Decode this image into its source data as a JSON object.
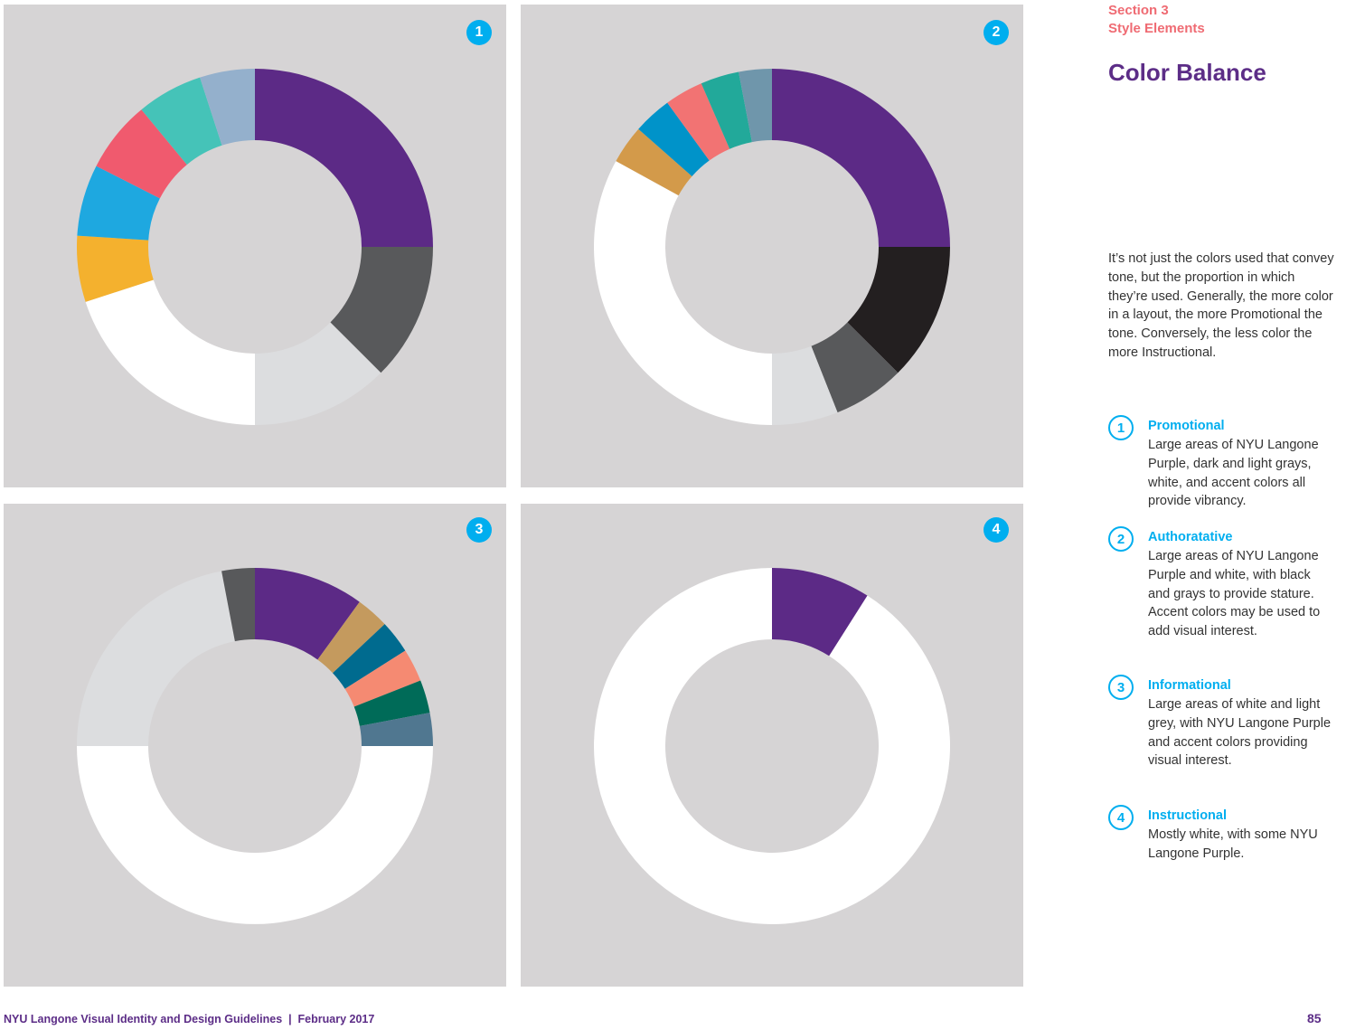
{
  "header": {
    "section": "Section 3",
    "subsection": "Style Elements",
    "title": "Color Balance"
  },
  "intro": "It’s not just the colors used that convey tone, but the proportion in which they’re used. Generally, the more color in a layout, the more Promotional the tone. Conversely, the less color the more Instructional.",
  "items": [
    {
      "number": "1",
      "title": "Promotional",
      "text": "Large areas of NYU Langone Purple, dark and light grays, white, and accent colors all provide vibrancy."
    },
    {
      "number": "2",
      "title": "Authoratative",
      "text": "Large areas of NYU Langone Purple and white, with black and grays to provide stature.  Accent colors may be used to add visual interest."
    },
    {
      "number": "3",
      "title": "Informational",
      "text": "Large areas of white and light grey, with NYU Langone Purple and accent colors providing visual interest."
    },
    {
      "number": "4",
      "title": "Instructional",
      "text": "Mostly white, with some NYU Langone Purple."
    }
  ],
  "footer": {
    "left": "NYU Langone Visual Identity and Design Guidelines  |  February 2017",
    "page": "85"
  },
  "colors": {
    "purple": "#5c2d87",
    "accent_blue": "#00aeef",
    "section_coral": "#ef6b73",
    "panel_gray": "#d6d4d5"
  },
  "chart_data": [
    {
      "type": "pie",
      "badge": "1",
      "series": [
        {
          "values": [
            25,
            12.5,
            12.5,
            20,
            6,
            6.5,
            6.5,
            6,
            5
          ]
        }
      ],
      "colors": [
        "#5c2a86",
        "#58595b",
        "#dcdddf",
        "#ffffff",
        "#f4b12e",
        "#1ea8e0",
        "#f05a6e",
        "#45c3b8",
        "#94b0cc"
      ]
    },
    {
      "type": "pie",
      "badge": "2",
      "series": [
        {
          "values": [
            25,
            12.5,
            6.5,
            6,
            33,
            3.5,
            3.5,
            3.5,
            3.5,
            3
          ]
        }
      ],
      "colors": [
        "#5c2a86",
        "#231f20",
        "#58595b",
        "#dcdddf",
        "#ffffff",
        "#d39a4a",
        "#0093c9",
        "#f27373",
        "#22a99a",
        "#6f96ab"
      ]
    },
    {
      "type": "pie",
      "badge": "3",
      "series": [
        {
          "values": [
            10,
            3,
            3,
            3,
            3,
            3,
            50,
            22,
            3
          ]
        }
      ],
      "colors": [
        "#5c2a86",
        "#c49a5e",
        "#006b8f",
        "#f58a72",
        "#006b58",
        "#507790",
        "#ffffff",
        "#dcdddf",
        "#58595b"
      ]
    },
    {
      "type": "pie",
      "badge": "4",
      "series": [
        {
          "values": [
            9,
            91
          ]
        }
      ],
      "colors": [
        "#5c2a86",
        "#ffffff"
      ]
    }
  ]
}
